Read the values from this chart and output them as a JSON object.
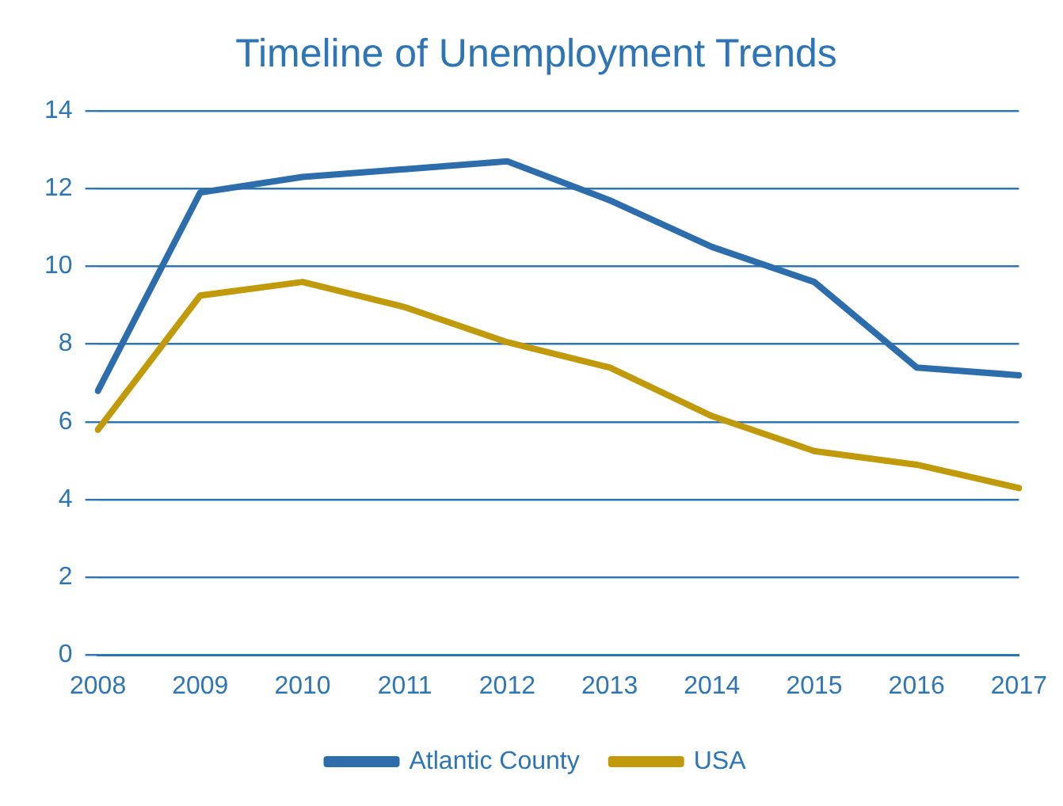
{
  "chart_data": {
    "type": "line",
    "title": "Timeline of Unemployment Trends",
    "categories": [
      "2008",
      "2009",
      "2010",
      "2011",
      "2012",
      "2013",
      "2014",
      "2015",
      "2016",
      "2017"
    ],
    "series": [
      {
        "name": "Atlantic County",
        "color": "#2e6dab",
        "values": [
          6.8,
          11.9,
          12.3,
          12.5,
          12.7,
          11.7,
          10.5,
          9.6,
          7.4,
          7.2
        ]
      },
      {
        "name": "USA",
        "color": "#c09a0b",
        "values": [
          5.8,
          9.25,
          9.6,
          8.95,
          8.05,
          7.4,
          6.15,
          5.25,
          4.9,
          4.3
        ]
      }
    ],
    "ylim": [
      0,
      14
    ],
    "yticks": [
      0,
      2,
      4,
      6,
      8,
      10,
      12,
      14
    ],
    "grid": "y",
    "legend": "bottom",
    "marker": "none",
    "line_style": "solid"
  }
}
